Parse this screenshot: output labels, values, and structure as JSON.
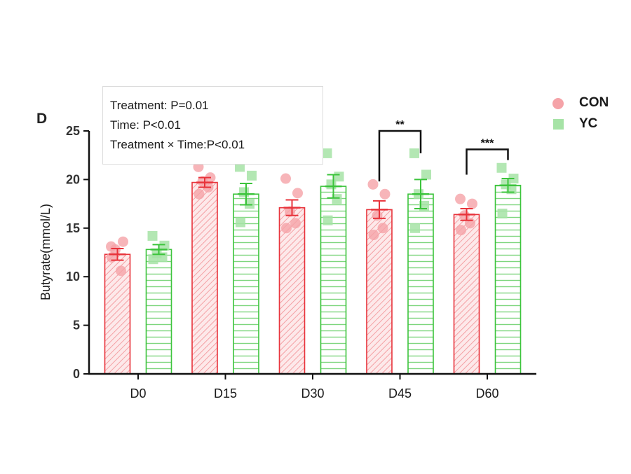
{
  "panel_label": "D",
  "stats": {
    "line1": "Treatment: P=0.01",
    "line2": "Time: P<0.01",
    "line3": "Treatment × Time:P<0.01"
  },
  "legend": {
    "items": [
      {
        "label": "CON",
        "shape": "circle",
        "color": "#f5a3a8"
      },
      {
        "label": "YC",
        "shape": "square",
        "color": "#a6e3a6"
      }
    ]
  },
  "chart_data": {
    "type": "bar",
    "title": "",
    "xlabel": "",
    "ylabel": "Butyrate(mmol/L)",
    "ylim": [
      0,
      25
    ],
    "yticks": [
      0,
      5,
      10,
      15,
      20,
      25
    ],
    "grid": false,
    "legend_position": "top-right",
    "categories": [
      "D0",
      "D15",
      "D30",
      "D45",
      "D60"
    ],
    "series": [
      {
        "name": "CON",
        "color": "#e8333b",
        "fill_pattern": "diagonal-hatch",
        "point_color": "#f5a3a8",
        "values": [
          12.3,
          19.7,
          17.1,
          16.9,
          16.4
        ],
        "sem": [
          0.6,
          0.5,
          0.8,
          0.9,
          0.6
        ],
        "points": [
          [
            13.1,
            13.6,
            12.8,
            10.6,
            12.0
          ],
          [
            21.3,
            20.2,
            19.8,
            19.2,
            18.5
          ],
          [
            20.1,
            18.6,
            16.7,
            15.5,
            15.0
          ],
          [
            19.5,
            18.5,
            16.3,
            15.0,
            14.3
          ],
          [
            18.0,
            17.5,
            16.3,
            15.5,
            14.8
          ]
        ]
      },
      {
        "name": "YC",
        "color": "#3cc43c",
        "fill_pattern": "horizontal-lines",
        "point_color": "#a6e3a6",
        "values": [
          12.8,
          18.5,
          19.3,
          18.5,
          19.4
        ],
        "sem": [
          0.5,
          1.1,
          1.2,
          1.5,
          0.7
        ],
        "points": [
          [
            14.2,
            13.2,
            12.4,
            12.0,
            11.8
          ],
          [
            21.3,
            20.4,
            18.7,
            17.5,
            15.6
          ],
          [
            22.7,
            20.3,
            19.5,
            18.0,
            15.8
          ],
          [
            22.7,
            20.5,
            18.5,
            17.3,
            15.0
          ],
          [
            21.2,
            20.1,
            19.5,
            19.0,
            16.5
          ]
        ]
      }
    ],
    "significance": [
      {
        "category": "D45",
        "label": "**",
        "con_anchor": 19.8,
        "yc_anchor": 22.7,
        "top": 25.0
      },
      {
        "category": "D60",
        "label": "***",
        "con_anchor": 20.5,
        "yc_anchor": 22.0,
        "top": 23.1
      }
    ]
  }
}
